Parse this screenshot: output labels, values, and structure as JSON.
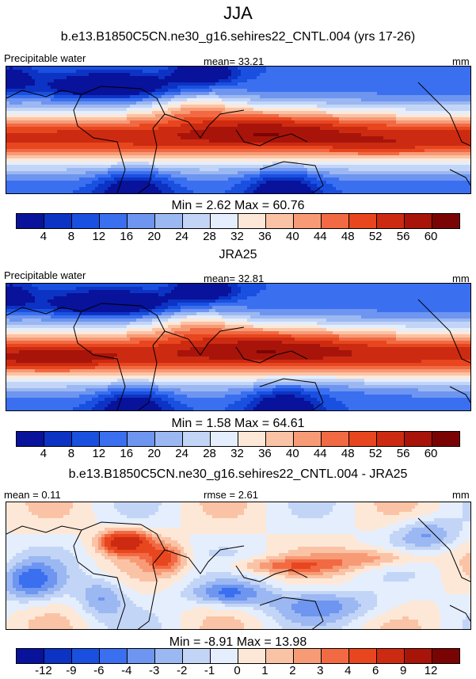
{
  "title": "JJA",
  "panels": [
    {
      "title": "b.e13.B1850C5CN.ne30_g16.sehires22_CNTL.004 (yrs 17-26)",
      "left_label": "Precipitable water",
      "center_label": "mean=  33.21",
      "units": "mm",
      "minmax": "Min =   2.62 Max =  60.76",
      "colorbar": "abs",
      "field": "model"
    },
    {
      "title": "JRA25",
      "left_label": "Precipitable water",
      "center_label": "mean=  32.81",
      "units": "mm",
      "minmax": "Min =   1.58 Max =  64.61",
      "colorbar": "abs",
      "field": "obs"
    },
    {
      "title": "b.e13.B1850C5CN.ne30_g16.sehires22_CNTL.004 - JRA25",
      "left_label": "mean =   0.11",
      "center_label": "rmse =   2.61",
      "units": "mm",
      "minmax": "Min =  -8.91 Max =  13.98",
      "colorbar": "diff",
      "field": "diff"
    }
  ],
  "colorbars": {
    "abs": {
      "labels": [
        "4",
        "8",
        "12",
        "16",
        "20",
        "24",
        "28",
        "32",
        "36",
        "40",
        "44",
        "48",
        "52",
        "56",
        "60"
      ],
      "colors": [
        "#08129a",
        "#0c33c4",
        "#1a50e0",
        "#3a6ff0",
        "#6e95ef",
        "#9cb8f2",
        "#c3d5f7",
        "#e4eefc",
        "#fde8d8",
        "#fbc3a5",
        "#f79b76",
        "#f16a44",
        "#e8461e",
        "#cc2b12",
        "#a8140a",
        "#7a0403"
      ]
    },
    "diff": {
      "labels": [
        "-12",
        "-9",
        "-6",
        "-4",
        "-3",
        "-2",
        "-1",
        "0",
        "1",
        "2",
        "3",
        "4",
        "6",
        "9",
        "12"
      ],
      "colors": [
        "#08129a",
        "#0c33c4",
        "#1a50e0",
        "#3a6ff0",
        "#6e95ef",
        "#9cb8f2",
        "#c3d5f7",
        "#e4eefc",
        "#fde8d8",
        "#fbc3a5",
        "#f79b76",
        "#f16a44",
        "#e8461e",
        "#cc2b12",
        "#a8140a",
        "#7a0403"
      ]
    }
  }
}
